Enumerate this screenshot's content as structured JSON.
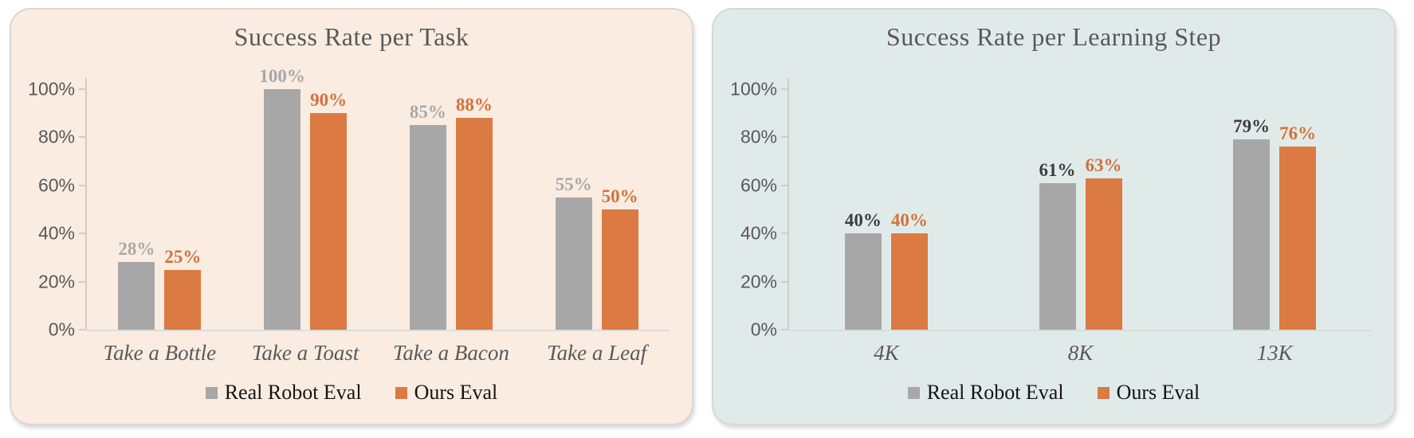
{
  "styles": {
    "page_bg": "#ffffff",
    "text_color": "#595959",
    "legend_text_color": "#141414",
    "axis_color": "#d2ccc6",
    "gray_series_color": "#a7a7a7",
    "orange_series_color": "#db7a43"
  },
  "chart_data": [
    {
      "type": "bar",
      "title": "Success Rate per Task",
      "panel_bg": "#faece1",
      "categories": [
        "Take a Bottle",
        "Take a Toast",
        "Take a Bacon",
        "Take a Leaf"
      ],
      "series": [
        {
          "name": "Real Robot Eval",
          "color": "#a7a7a7",
          "label_color": "#a8a8a8",
          "values": [
            28,
            100,
            85,
            55
          ]
        },
        {
          "name": "Ours Eval",
          "color": "#db7a43",
          "label_color": "#d2713c",
          "values": [
            25,
            90,
            88,
            50
          ]
        }
      ],
      "value_suffix": "%",
      "y_ticks": [
        "100%",
        "80%",
        "60%",
        "40%",
        "20%",
        "0%"
      ],
      "ylim": [
        0,
        100
      ],
      "grid": false,
      "legend_position": "bottom"
    },
    {
      "type": "bar",
      "title": "Success Rate per Learning Step",
      "panel_bg": "#e0ebe9",
      "categories": [
        "4K",
        "8K",
        "13K"
      ],
      "series": [
        {
          "name": "Real Robot Eval",
          "color": "#a7a7a7",
          "label_color": "#3d3d3d",
          "values": [
            40,
            61,
            79
          ]
        },
        {
          "name": "Ours Eval",
          "color": "#db7a43",
          "label_color": "#d2713c",
          "values": [
            40,
            63,
            76
          ]
        }
      ],
      "value_suffix": "%",
      "y_ticks": [
        "100%",
        "80%",
        "60%",
        "40%",
        "20%",
        "0%"
      ],
      "ylim": [
        0,
        100
      ],
      "grid": false,
      "legend_position": "bottom"
    }
  ]
}
